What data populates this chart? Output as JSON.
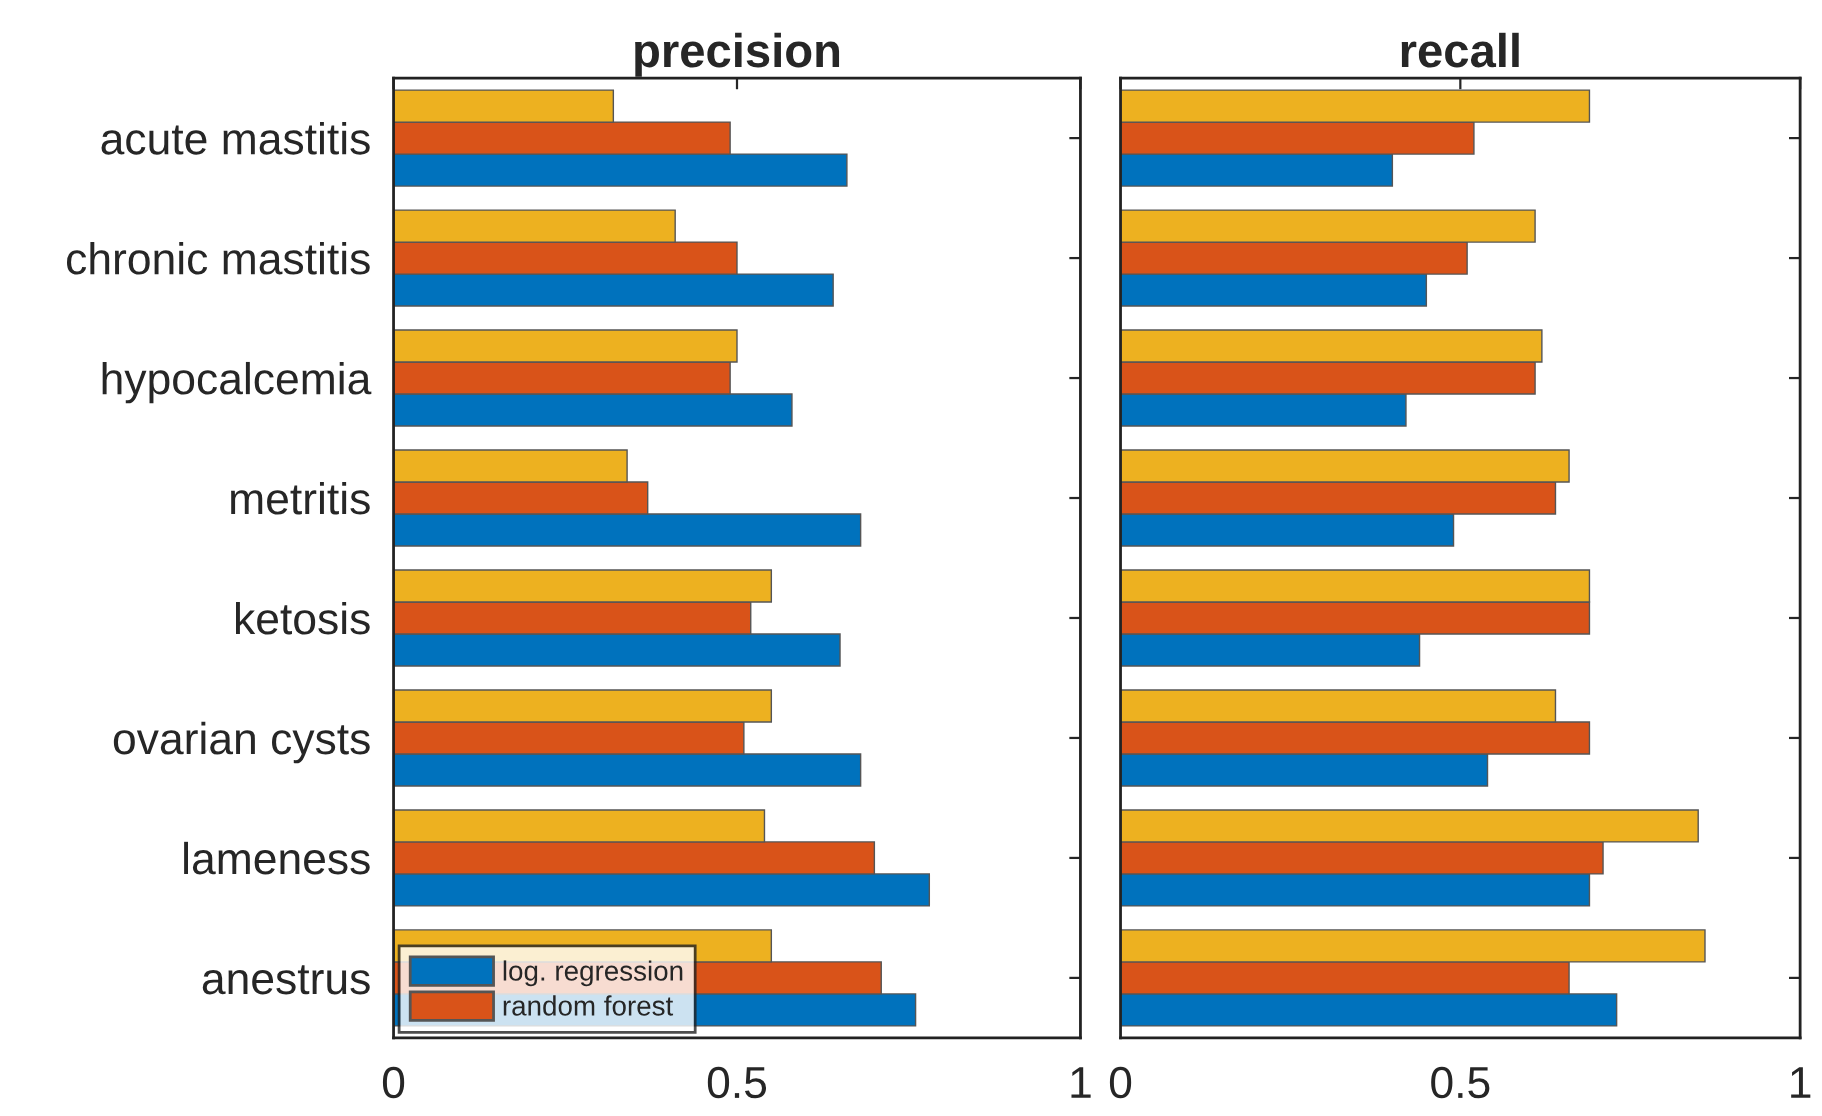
{
  "chart_data": [
    {
      "type": "bar",
      "orientation": "horizontal",
      "title": "precision",
      "categories": [
        "acute mastitis",
        "chronic mastitis",
        "hypocalcemia",
        "metritis",
        "ketosis",
        "ovarian cysts",
        "lameness",
        "anestrus"
      ],
      "series": [
        {
          "name": "log. regression",
          "color": "#0072bd",
          "values": [
            0.66,
            0.64,
            0.58,
            0.68,
            0.65,
            0.68,
            0.78,
            0.76
          ]
        },
        {
          "name": "random forest",
          "color": "#d95319",
          "values": [
            0.49,
            0.5,
            0.49,
            0.37,
            0.52,
            0.51,
            0.7,
            0.71
          ]
        },
        {
          "color": "#edb120",
          "values": [
            0.32,
            0.41,
            0.5,
            0.34,
            0.55,
            0.55,
            0.54,
            0.55
          ]
        }
      ],
      "xlim": [
        0,
        1
      ],
      "xticks": [
        0,
        0.5,
        1
      ],
      "legend": "bottom left",
      "grid": false
    },
    {
      "type": "bar",
      "orientation": "horizontal",
      "title": "recall",
      "categories": [
        null,
        null,
        null,
        null,
        null,
        null,
        null,
        null
      ],
      "series": [
        {
          "color": "#0072bd",
          "values": [
            0.4,
            0.45,
            0.42,
            0.49,
            0.44,
            0.54,
            0.69,
            0.73
          ]
        },
        {
          "color": "#d95319",
          "values": [
            0.52,
            0.51,
            0.61,
            0.64,
            0.69,
            0.69,
            0.71,
            0.66
          ]
        },
        {
          "color": "#edb120",
          "values": [
            0.69,
            0.61,
            0.62,
            0.66,
            0.69,
            0.64,
            0.85,
            0.86
          ]
        }
      ],
      "xlim": [
        0,
        1
      ],
      "xticks": [
        0,
        0.5,
        1
      ],
      "legend": false,
      "grid": false
    }
  ]
}
